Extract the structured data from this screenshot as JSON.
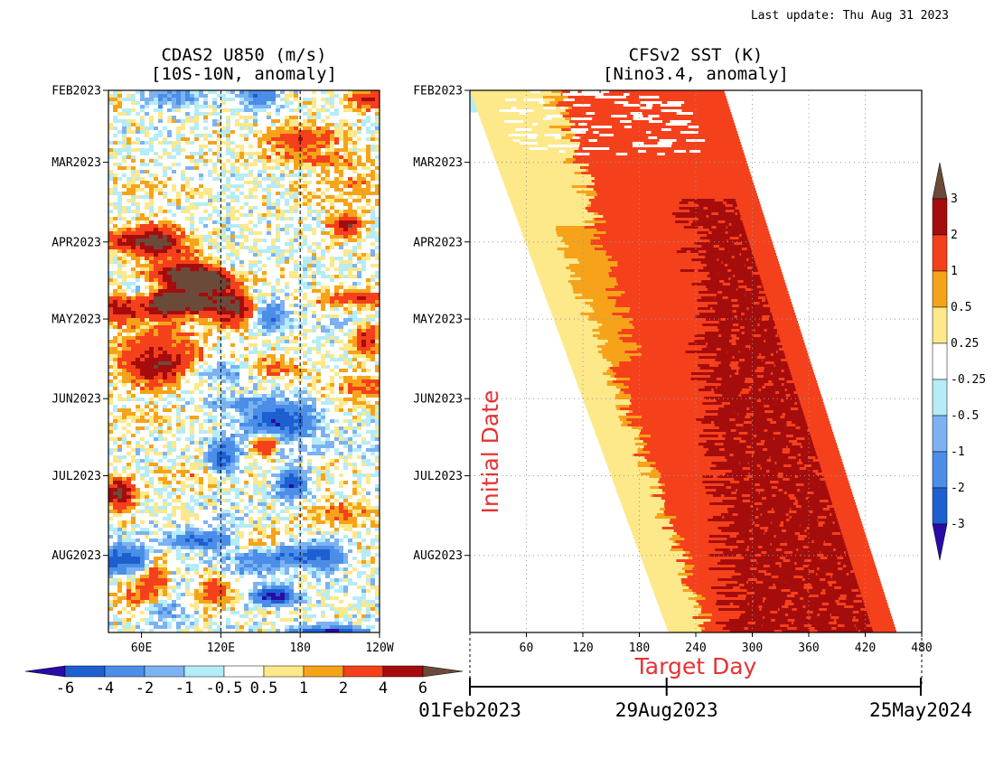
{
  "header": {
    "last_update": "Last update: Thu Aug 31 2023"
  },
  "colors": {
    "u850": [
      "#2a0aa8",
      "#1e5fd0",
      "#4a8ee8",
      "#7cb2f2",
      "#b4ecf8",
      "#ffffff",
      "#fde88a",
      "#f6a31a",
      "#f5401c",
      "#a50d0d",
      "#6b4a3a"
    ],
    "sst": [
      "#2a0aa8",
      "#1e5fd0",
      "#4a8ee8",
      "#7cb2f2",
      "#b4ecf8",
      "#ffffff",
      "#fde88a",
      "#f6a31a",
      "#f5401c",
      "#a50d0d",
      "#6b4a3a"
    ],
    "hatch": "#000000",
    "accent_red": "#e83232"
  },
  "chart_data": [
    {
      "type": "heatmap",
      "title": "CDAS2 U850 (m/s)",
      "subtitle": "[10S-10N, anomaly]",
      "y_ticks": [
        "FEB2023",
        "MAR2023",
        "APR2023",
        "MAY2023",
        "JUN2023",
        "JUL2023",
        "AUG2023"
      ],
      "y_tick_days": [
        0,
        28,
        59,
        89,
        120,
        150,
        181
      ],
      "y_range_days": [
        0,
        211
      ],
      "x_ticks": [
        "60E",
        "120E",
        "180",
        "120W"
      ],
      "x_tick_lon": [
        60,
        120,
        180,
        240
      ],
      "x_range_lon": [
        35,
        240
      ],
      "dashed_lon": [
        120,
        180
      ],
      "colorbar": {
        "labels": [
          "-6",
          "-4",
          "-2",
          "-1",
          "-0.5",
          "0.5",
          "1",
          "2",
          "4",
          "6"
        ],
        "bounds": [
          -6,
          -4,
          -2,
          -1,
          -0.5,
          0.5,
          1,
          2,
          4,
          6
        ]
      }
    },
    {
      "type": "heatmap",
      "title": "CFSv2 SST (K)",
      "subtitle": "[Nino3.4, anomaly]",
      "y_ticks": [
        "FEB2023",
        "MAR2023",
        "APR2023",
        "MAY2023",
        "JUN2023",
        "JUL2023",
        "AUG2023"
      ],
      "y_tick_days": [
        0,
        28,
        59,
        89,
        120,
        150,
        181
      ],
      "y_range_days": [
        0,
        211
      ],
      "x_ticks": [
        "60",
        "120",
        "180",
        "240",
        "300",
        "360",
        "420",
        "480"
      ],
      "x_tick_days": [
        60,
        120,
        180,
        240,
        300,
        360,
        420,
        480
      ],
      "x_range_days": [
        0,
        480
      ],
      "ylabel": "Initial Date",
      "xlabel": "Target Day",
      "date_axis": {
        "labels": [
          "01Feb2023",
          "29Aug2023",
          "25May2024"
        ],
        "days": [
          0,
          209,
          479
        ]
      },
      "colorbar": {
        "labels": [
          "3",
          "2",
          "1",
          "0.5",
          "0.25",
          "-0.25",
          "-0.5",
          "-1",
          "-2",
          "-3"
        ],
        "bounds": [
          3,
          2,
          1,
          0.5,
          0.25,
          -0.25,
          -0.5,
          -1,
          -2,
          -3
        ]
      }
    }
  ]
}
